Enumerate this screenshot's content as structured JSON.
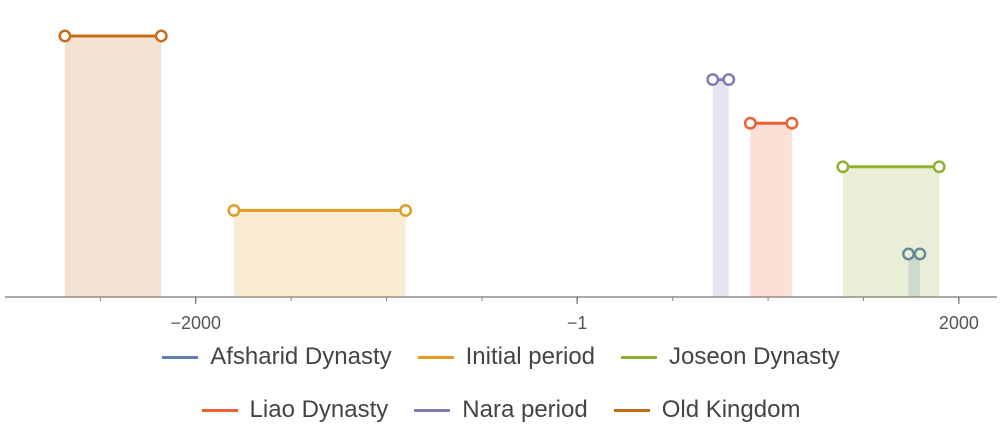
{
  "chart_data": {
    "type": "timeline",
    "xlim": [
      -3000,
      2200
    ],
    "x_ticks": [
      {
        "value": -2000,
        "label": "−2000"
      },
      {
        "value": -1,
        "label": "−1"
      },
      {
        "value": 2000,
        "label": "2000"
      }
    ],
    "series": [
      {
        "name": "Afsharid Dynasty",
        "start": 1736,
        "end": 1796,
        "color": "#5e81b5"
      },
      {
        "name": "Initial period",
        "start": 1800,
        "end": 900,
        "color": "#e19c24"
      },
      {
        "name": "Joseon Dynasty",
        "start": 1392,
        "end": 1897,
        "color": "#8fb032"
      },
      {
        "name": "Liao Dynasty",
        "start": 907,
        "end": 1125,
        "color": "#eb6235"
      },
      {
        "name": "Nara period",
        "start": 710,
        "end": 794,
        "color": "#8778b3"
      },
      {
        "name": "Old Kingdom",
        "start": 2686,
        "end": 2181,
        "color": "#c56e1a"
      }
    ],
    "signed_ranges": {
      "Afsharid Dynasty": [
        1736,
        1796
      ],
      "Initial period": [
        -1800,
        -900
      ],
      "Joseon Dynasty": [
        1392,
        1897
      ],
      "Liao Dynasty": [
        907,
        1125
      ],
      "Nara period": [
        710,
        794
      ],
      "Old Kingdom": [
        -2686,
        -2181
      ]
    },
    "legend_position": "bottom",
    "grid": false
  },
  "legend": {
    "row1": [
      "Afsharid Dynasty",
      "Initial period",
      "Joseon Dynasty"
    ],
    "row2": [
      "Liao Dynasty",
      "Nara period",
      "Old Kingdom"
    ]
  }
}
